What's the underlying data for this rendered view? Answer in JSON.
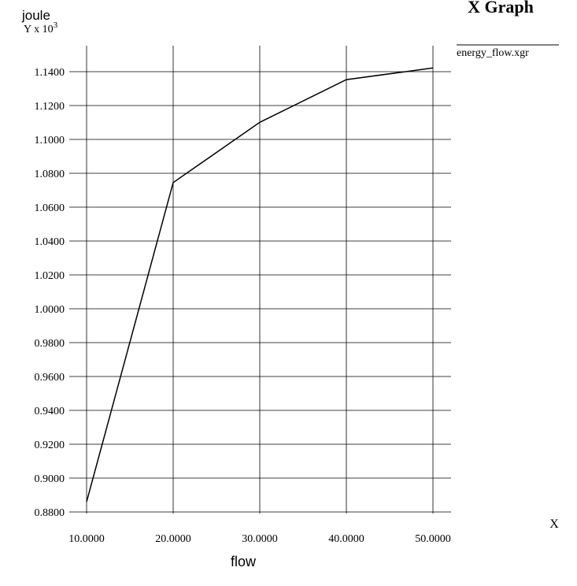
{
  "chart_data": {
    "type": "line",
    "title": "X Graph",
    "xlabel": "flow",
    "ylabel": "joule",
    "y_multiplier_prefix": "Y x 10",
    "y_multiplier_exp": "3",
    "x_unit": "X",
    "xlim": [
      10,
      50
    ],
    "ylim": [
      0.878,
      1.155
    ],
    "grid": true,
    "legend_position": "top-right",
    "x_ticks": [
      10,
      20,
      30,
      40,
      50
    ],
    "x_tick_labels": [
      "10.0000",
      "20.0000",
      "30.0000",
      "40.0000",
      "50.0000"
    ],
    "y_ticks": [
      0.88,
      0.9,
      0.92,
      0.94,
      0.96,
      0.98,
      1.0,
      1.02,
      1.04,
      1.06,
      1.08,
      1.1,
      1.12,
      1.14
    ],
    "y_tick_labels": [
      "0.8800",
      "0.9000",
      "0.9200",
      "0.9400",
      "0.9600",
      "0.9800",
      "1.0000",
      "1.0200",
      "1.0400",
      "1.0600",
      "1.0800",
      "1.1000",
      "1.1200",
      "1.1400"
    ],
    "series": [
      {
        "name": "energy_flow.xgr",
        "color": "#000000",
        "x": [
          10,
          20,
          30,
          40,
          50
        ],
        "y": [
          0.886,
          1.0745,
          1.1101,
          1.1353,
          1.1422
        ]
      }
    ]
  }
}
